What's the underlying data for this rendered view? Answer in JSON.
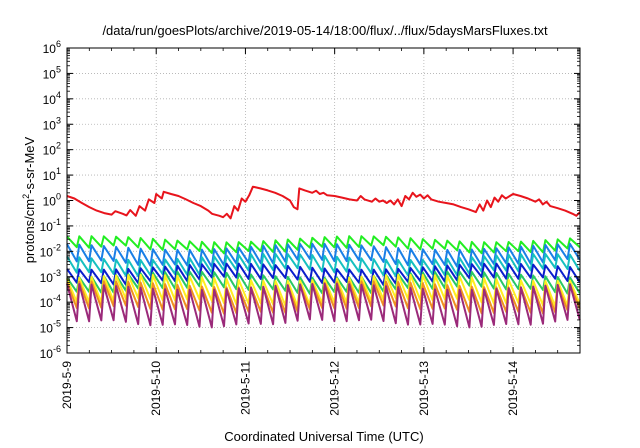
{
  "chart_data": {
    "type": "line",
    "title": "/data/run/goesPlots/archive/2019-05-14/18:00/flux/../flux/5daysMarsFluxes.txt",
    "xlabel": "Coordinated Universal Time (UTC)",
    "ylabel": "protons/cm2-s-sr-MeV",
    "ylabel_parts": {
      "pre": "protons/cm",
      "sup": "2",
      "post": "-s-sr-MeV"
    },
    "yscale": "log",
    "ylim": [
      1e-06,
      1000000.0
    ],
    "xlim": [
      "2019-05-09",
      "2019-05-14 18:00"
    ],
    "grid": true,
    "legend": "none",
    "x_ticks": [
      "2019-5-9",
      "2019-5-10",
      "2019-5-11",
      "2019-5-12",
      "2019-5-13",
      "2019-5-14"
    ],
    "y_ticks": [
      {
        "base": "10",
        "exp": "-6"
      },
      {
        "base": "10",
        "exp": "-5"
      },
      {
        "base": "10",
        "exp": "-4"
      },
      {
        "base": "10",
        "exp": "-3"
      },
      {
        "base": "10",
        "exp": "-2"
      },
      {
        "base": "10",
        "exp": "-1"
      },
      {
        "base": "10",
        "exp": "0"
      },
      {
        "base": "10",
        "exp": "1"
      },
      {
        "base": "10",
        "exp": "2"
      },
      {
        "base": "10",
        "exp": "3"
      },
      {
        "base": "10",
        "exp": "4"
      },
      {
        "base": "10",
        "exp": "5"
      },
      {
        "base": "10",
        "exp": "6"
      }
    ],
    "series": [
      {
        "color": "#e8141c",
        "points": [
          [
            "2019-05-09 00:00",
            1.5
          ],
          [
            "2019-05-09 02:00",
            1.2
          ],
          [
            "2019-05-09 04:00",
            0.8
          ],
          [
            "2019-05-09 06:00",
            0.55
          ],
          [
            "2019-05-09 08:00",
            0.4
          ],
          [
            "2019-05-09 10:00",
            0.32
          ],
          [
            "2019-05-09 12:00",
            0.28
          ],
          [
            "2019-05-09 13:00",
            0.38
          ],
          [
            "2019-05-09 15:00",
            0.3
          ],
          [
            "2019-05-09 16:00",
            0.26
          ],
          [
            "2019-05-09 17:00",
            0.42
          ],
          [
            "2019-05-09 18:30",
            0.25
          ],
          [
            "2019-05-09 19:30",
            0.6
          ],
          [
            "2019-05-09 21:00",
            0.4
          ],
          [
            "2019-05-09 22:00",
            1.1
          ],
          [
            "2019-05-09 23:30",
            0.8
          ],
          [
            "2019-05-10 00:00",
            1.8
          ],
          [
            "2019-05-10 01:30",
            1.2
          ],
          [
            "2019-05-10 02:00",
            2.2
          ],
          [
            "2019-05-10 04:00",
            1.8
          ],
          [
            "2019-05-10 06:00",
            1.5
          ],
          [
            "2019-05-10 08:00",
            1.1
          ],
          [
            "2019-05-10 10:00",
            0.8
          ],
          [
            "2019-05-10 12:00",
            0.6
          ],
          [
            "2019-05-10 14:00",
            0.4
          ],
          [
            "2019-05-10 15:00",
            0.3
          ],
          [
            "2019-05-10 17:00",
            0.25
          ],
          [
            "2019-05-10 18:00",
            0.22
          ],
          [
            "2019-05-10 19:00",
            0.3
          ],
          [
            "2019-05-10 20:00",
            0.2
          ],
          [
            "2019-05-10 21:00",
            0.6
          ],
          [
            "2019-05-10 22:00",
            0.4
          ],
          [
            "2019-05-10 23:00",
            1.2
          ],
          [
            "2019-05-11 00:00",
            0.9
          ],
          [
            "2019-05-11 01:00",
            1.6
          ],
          [
            "2019-05-11 02:00",
            3.5
          ],
          [
            "2019-05-11 04:00",
            3.0
          ],
          [
            "2019-05-11 06:00",
            2.5
          ],
          [
            "2019-05-11 08:00",
            2.0
          ],
          [
            "2019-05-11 10:00",
            1.5
          ],
          [
            "2019-05-11 12:00",
            1.0
          ],
          [
            "2019-05-11 13:00",
            0.55
          ],
          [
            "2019-05-11 14:00",
            0.45
          ],
          [
            "2019-05-11 14:30",
            3.0
          ],
          [
            "2019-05-11 16:00",
            2.5
          ],
          [
            "2019-05-11 18:00",
            2.0
          ],
          [
            "2019-05-11 19:00",
            2.4
          ],
          [
            "2019-05-11 20:00",
            1.8
          ],
          [
            "2019-05-11 21:00",
            2.0
          ],
          [
            "2019-05-11 22:00",
            1.6
          ],
          [
            "2019-05-12 00:00",
            1.5
          ],
          [
            "2019-05-12 02:00",
            1.3
          ],
          [
            "2019-05-12 04:00",
            1.1
          ],
          [
            "2019-05-12 06:00",
            1.0
          ],
          [
            "2019-05-12 07:00",
            1.5
          ],
          [
            "2019-05-12 08:00",
            1.1
          ],
          [
            "2019-05-12 10:00",
            0.9
          ],
          [
            "2019-05-12 11:00",
            1.2
          ],
          [
            "2019-05-12 12:00",
            0.9
          ],
          [
            "2019-05-12 13:00",
            1.0
          ],
          [
            "2019-05-12 14:00",
            0.8
          ],
          [
            "2019-05-12 15:00",
            1.0
          ],
          [
            "2019-05-12 16:00",
            0.7
          ],
          [
            "2019-05-12 17:00",
            1.1
          ],
          [
            "2019-05-12 18:00",
            0.6
          ],
          [
            "2019-05-12 19:00",
            1.5
          ],
          [
            "2019-05-12 20:00",
            1.1
          ],
          [
            "2019-05-12 21:00",
            2.0
          ],
          [
            "2019-05-12 22:00",
            1.4
          ],
          [
            "2019-05-12 23:00",
            1.7
          ],
          [
            "2019-05-13 00:00",
            1.2
          ],
          [
            "2019-05-13 01:00",
            1.6
          ],
          [
            "2019-05-13 02:00",
            1.1
          ],
          [
            "2019-05-13 04:00",
            0.9
          ],
          [
            "2019-05-13 06:00",
            0.8
          ],
          [
            "2019-05-13 08:00",
            0.7
          ],
          [
            "2019-05-13 10:00",
            0.55
          ],
          [
            "2019-05-13 12:00",
            0.45
          ],
          [
            "2019-05-13 14:00",
            0.35
          ],
          [
            "2019-05-13 15:00",
            0.7
          ],
          [
            "2019-05-13 16:00",
            0.4
          ],
          [
            "2019-05-13 17:00",
            1.0
          ],
          [
            "2019-05-13 18:00",
            0.55
          ],
          [
            "2019-05-13 19:00",
            1.3
          ],
          [
            "2019-05-13 20:00",
            0.9
          ],
          [
            "2019-05-13 21:00",
            1.6
          ],
          [
            "2019-05-13 22:00",
            1.2
          ],
          [
            "2019-05-14 00:00",
            1.8
          ],
          [
            "2019-05-14 02:00",
            1.5
          ],
          [
            "2019-05-14 04:00",
            1.2
          ],
          [
            "2019-05-14 06:00",
            0.9
          ],
          [
            "2019-05-14 07:00",
            1.1
          ],
          [
            "2019-05-14 08:00",
            0.7
          ],
          [
            "2019-05-14 09:00",
            0.9
          ],
          [
            "2019-05-14 10:00",
            0.6
          ],
          [
            "2019-05-14 12:00",
            0.5
          ],
          [
            "2019-05-14 14:00",
            0.4
          ],
          [
            "2019-05-14 16:00",
            0.3
          ],
          [
            "2019-05-14 17:00",
            0.25
          ],
          [
            "2019-05-14 18:00",
            0.35
          ]
        ]
      },
      {
        "color": "#22ee22",
        "base": 0.03,
        "low": 0.012,
        "period_h": 3.3
      },
      {
        "color": "#1a7fe6",
        "base": 0.015,
        "low": 0.0035,
        "period_h": 3.3
      },
      {
        "color": "#16c0c0",
        "base": 0.006,
        "low": 0.0015,
        "period_h": 3.3
      },
      {
        "color": "#0a1ecc",
        "base": 0.0025,
        "low": 0.0007,
        "period_h": 3.3
      },
      {
        "color": "#28c864",
        "base": 0.0012,
        "low": 0.0003,
        "period_h": 3.3
      },
      {
        "color": "#ffee20",
        "base": 0.0009,
        "low": 0.0001,
        "period_h": 3.3
      },
      {
        "color": "#f09020",
        "base": 0.0005,
        "low": 5e-05,
        "period_h": 3.3
      },
      {
        "color": "#9b2a7a",
        "base": 0.0004,
        "low": 1.5e-05,
        "period_h": 3.3
      }
    ]
  }
}
